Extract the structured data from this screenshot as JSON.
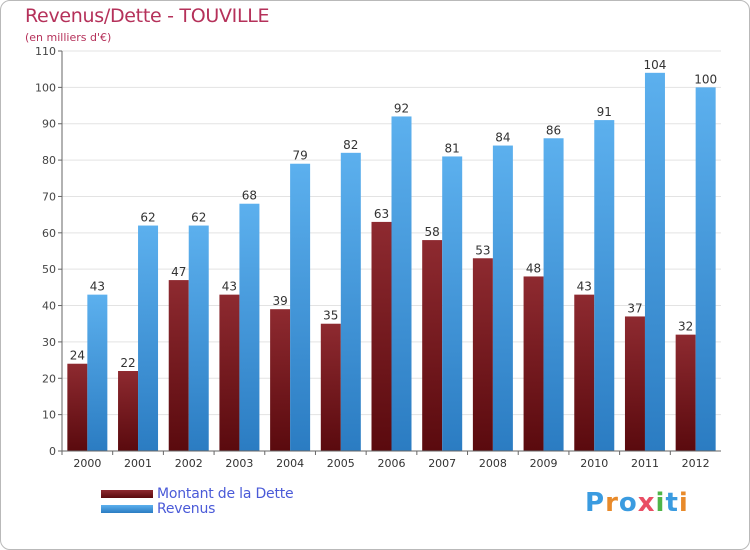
{
  "chart_data": {
    "type": "bar",
    "title": "Revenus/Dette - TOUVILLE",
    "subtitle": "(en milliers d'€)",
    "categories": [
      "2000",
      "2001",
      "2002",
      "2003",
      "2004",
      "2005",
      "2006",
      "2007",
      "2008",
      "2009",
      "2010",
      "2011",
      "2012"
    ],
    "series": [
      {
        "name": "Montant de la Dette",
        "values": [
          24,
          22,
          47,
          43,
          39,
          35,
          63,
          58,
          53,
          48,
          43,
          37,
          32
        ],
        "color": "#7a1a1f"
      },
      {
        "name": "Revenus",
        "values": [
          43,
          62,
          62,
          68,
          79,
          82,
          92,
          81,
          84,
          86,
          91,
          104,
          100
        ],
        "color": "#4aa3e4"
      }
    ],
    "yticks": [
      0,
      10,
      20,
      30,
      40,
      50,
      60,
      70,
      80,
      90,
      100,
      110
    ],
    "ylim": [
      0,
      110
    ],
    "grid": true,
    "legend_position": "bottom-left"
  },
  "logo": {
    "text": "Proxiti",
    "colors": [
      "#3a9be0",
      "#e88a2a",
      "#3a9be0",
      "#e94e64",
      "#4fb548",
      "#3a9be0",
      "#e88a2a"
    ]
  }
}
